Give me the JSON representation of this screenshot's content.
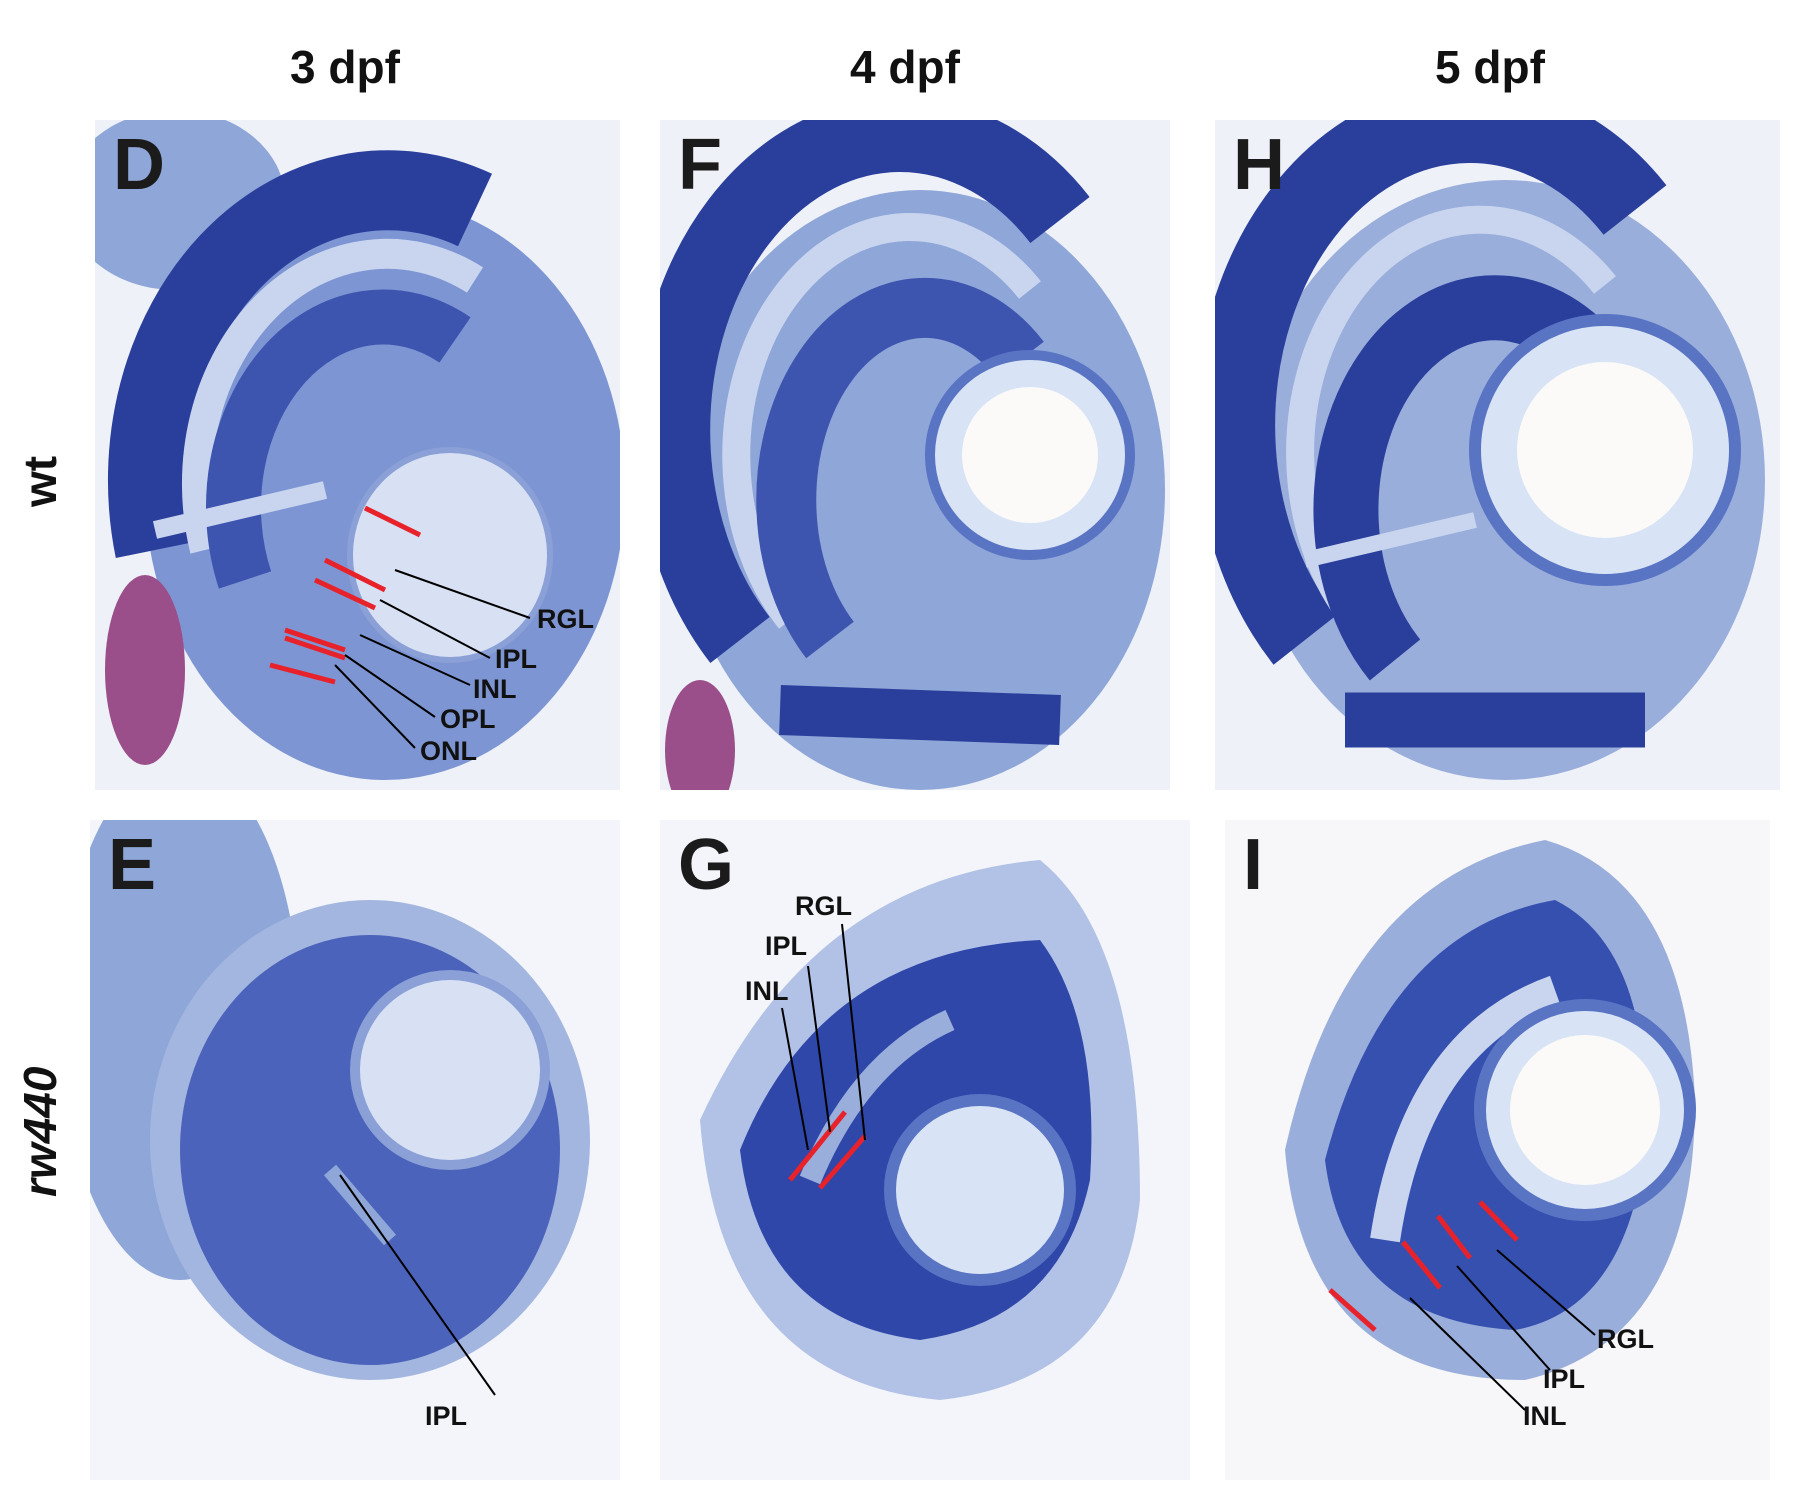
{
  "columns": [
    "3 dpf",
    "4 dpf",
    "5 dpf"
  ],
  "rows": [
    "wt",
    "rw440"
  ],
  "panels": {
    "D": {
      "letter": "D",
      "labels": [
        "RGL",
        "IPL",
        "INL",
        "OPL",
        "ONL"
      ]
    },
    "E": {
      "letter": "E",
      "labels": [
        "IPL"
      ]
    },
    "F": {
      "letter": "F",
      "labels": []
    },
    "G": {
      "letter": "G",
      "labels": [
        "RGL",
        "IPL",
        "INL"
      ]
    },
    "H": {
      "letter": "H",
      "labels": []
    },
    "I": {
      "letter": "I",
      "labels": [
        "RGL",
        "IPL",
        "INL"
      ]
    }
  },
  "colors": {
    "stain_dark": "#2a3f9c",
    "stain_mid": "#5a74c4",
    "stain_light": "#c9d5ef",
    "marker": "#e8222a",
    "yolk": "#9a4f8a"
  }
}
